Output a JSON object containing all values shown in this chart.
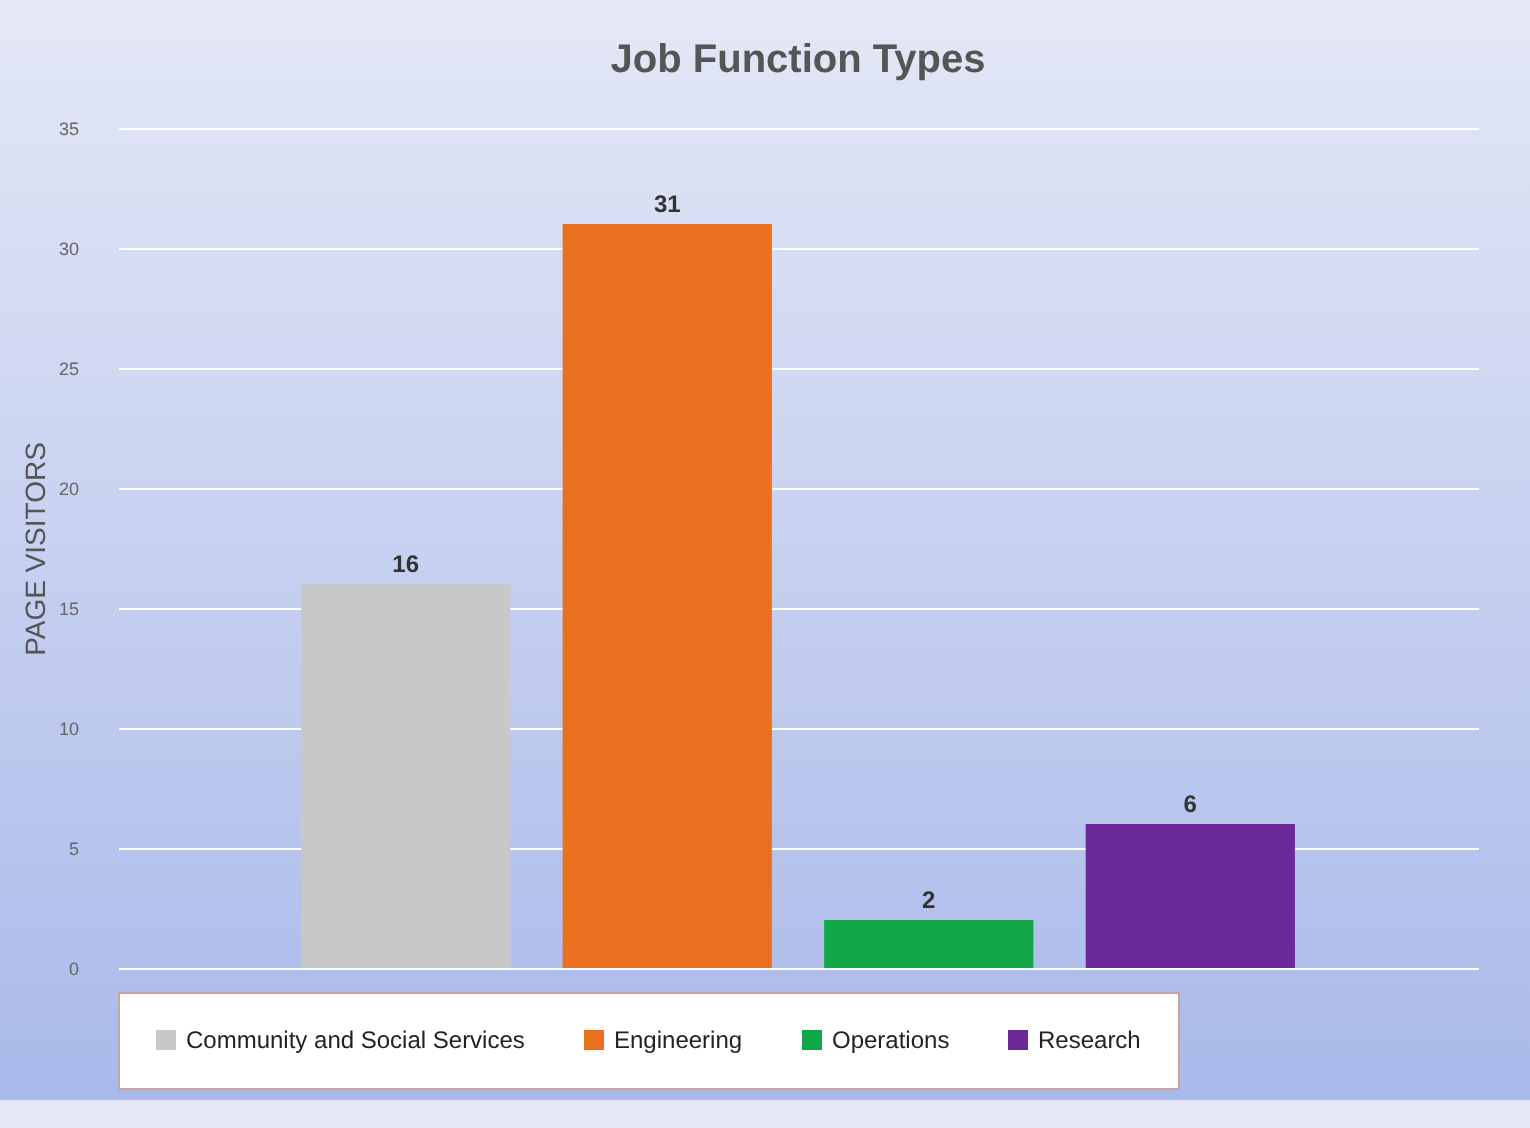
{
  "chart_data": {
    "type": "bar",
    "title": "Job Function Types",
    "ylabel": "PAGE VISITORS",
    "categories": [
      null,
      null,
      null,
      null
    ],
    "series": [
      {
        "name": "Community and Social Services",
        "color": "#c8c8c8",
        "values": [
          16,
          null,
          null,
          null
        ]
      },
      {
        "name": "Engineering",
        "color": "#e8701f",
        "values": [
          null,
          31,
          null,
          null
        ]
      },
      {
        "name": "Operations",
        "color": "#12a84a",
        "values": [
          null,
          null,
          2,
          null
        ]
      },
      {
        "name": "Research",
        "color": "#6a2a9a",
        "values": [
          null,
          null,
          null,
          6
        ]
      }
    ],
    "ylim": [
      0,
      35
    ],
    "yticks": [
      0,
      5,
      10,
      15,
      20,
      25,
      30,
      35
    ],
    "grid": "y",
    "legend": "bottom",
    "data_labels": true,
    "tick_labels": "y"
  }
}
